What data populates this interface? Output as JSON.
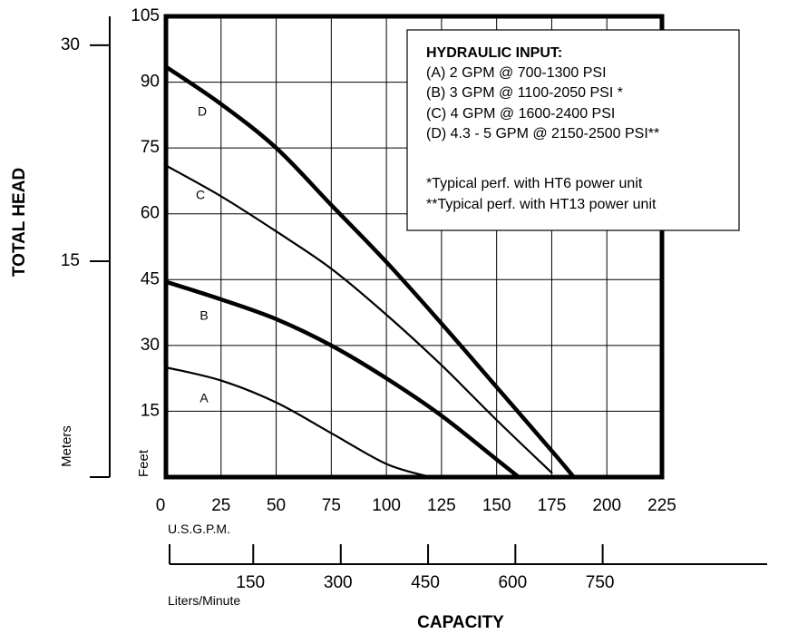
{
  "chart_data": {
    "type": "line",
    "title": "",
    "xlabel": "CAPACITY",
    "ylabel": "TOTAL HEAD",
    "x_units": "U.S.G.P.M.",
    "y_units": "Feet",
    "xlim": [
      0,
      225
    ],
    "ylim": [
      0,
      105
    ],
    "x_ticks": [
      "0",
      "25",
      "50",
      "75",
      "100",
      "125",
      "150",
      "175",
      "200",
      "225"
    ],
    "y_ticks": [
      "15",
      "30",
      "45",
      "60",
      "75",
      "90",
      "105"
    ],
    "secondary_y": {
      "units": "Meters",
      "ticks": [
        {
          "label": "15",
          "feet": 49.2
        },
        {
          "label": "30",
          "feet": 98.4
        }
      ]
    },
    "secondary_x": {
      "units": "Liters/Minute",
      "ticks": [
        {
          "label": "150",
          "gpm": 39.6
        },
        {
          "label": "300",
          "gpm": 79.3
        },
        {
          "label": "450",
          "gpm": 118.9
        },
        {
          "label": "600",
          "gpm": 158.5
        },
        {
          "label": "750",
          "gpm": 198.1
        }
      ]
    },
    "grid": true,
    "legend": {
      "position": "top-right",
      "title": "HYDRAULIC INPUT:",
      "lines": [
        "(A) 2 GPM @ 700-1300 PSI",
        "(B) 3 GPM @ 1100-2050 PSI *",
        "(C) 4 GPM @ 1600-2400 PSI",
        "(D) 4.3 - 5 GPM @ 2150-2500 PSI**",
        "",
        "*Typical perf. with HT6 power unit",
        "**Typical perf. with HT13 power unit"
      ]
    },
    "series": [
      {
        "name": "A",
        "bold": false,
        "x": [
          0,
          25,
          50,
          75,
          100,
          120
        ],
        "y": [
          25,
          22,
          17,
          10,
          3,
          0
        ]
      },
      {
        "name": "B",
        "bold": true,
        "x": [
          0,
          25,
          50,
          75,
          100,
          125,
          150,
          160
        ],
        "y": [
          44.5,
          40.5,
          36,
          30,
          22.5,
          14,
          4,
          0
        ]
      },
      {
        "name": "C",
        "bold": false,
        "x": [
          0,
          25,
          50,
          75,
          100,
          125,
          150,
          175
        ],
        "y": [
          71,
          64,
          56,
          47.5,
          37,
          25.5,
          13,
          1
        ]
      },
      {
        "name": "D",
        "bold": true,
        "x": [
          0,
          25,
          50,
          75,
          100,
          125,
          150,
          175,
          185
        ],
        "y": [
          93.5,
          85,
          75,
          62,
          49,
          35,
          20.5,
          6,
          0
        ]
      }
    ]
  }
}
